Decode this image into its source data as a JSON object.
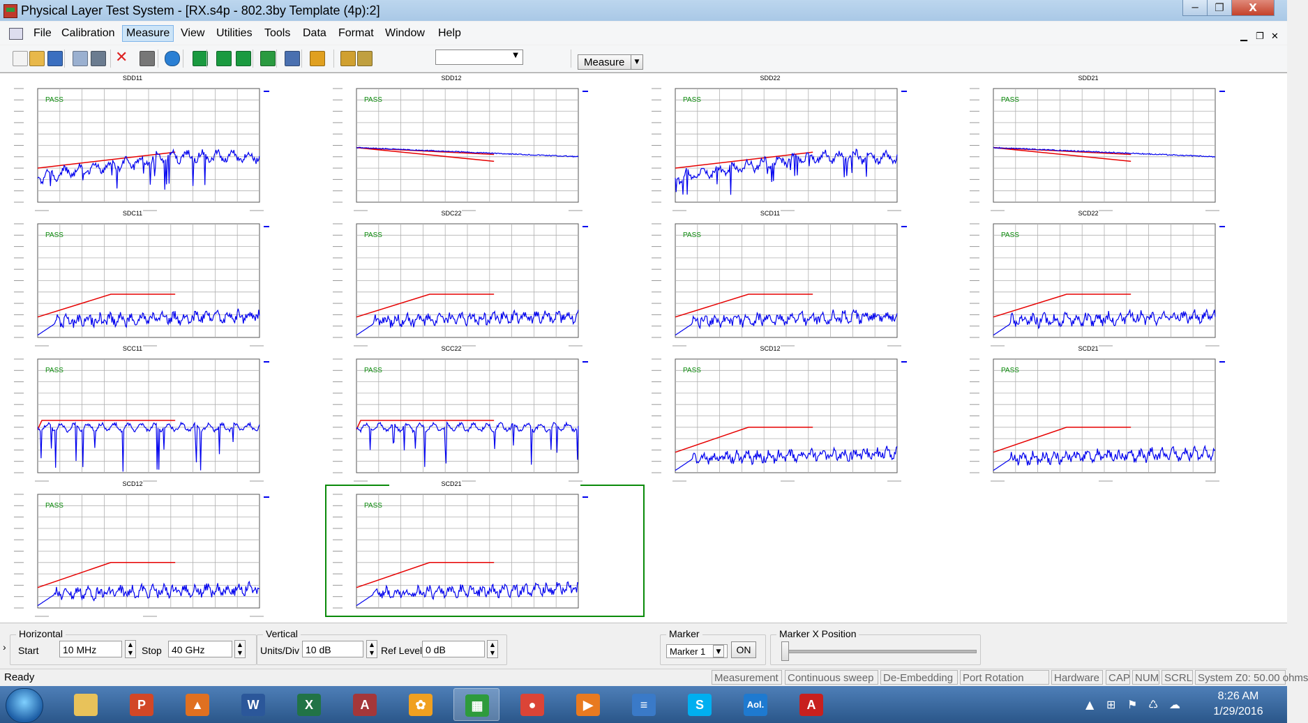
{
  "window": {
    "title": "Physical Layer Test System - [RX.s4p - 802.3by Template (4p):2]",
    "minimize": "─",
    "maximize": "❐",
    "close": "X"
  },
  "menu": {
    "items": [
      "File",
      "Calibration",
      "Measure",
      "View",
      "Utilities",
      "Tools",
      "Data",
      "Format",
      "Window",
      "Help"
    ],
    "active": "Measure",
    "mdi_min": "▁",
    "mdi_restore": "❐",
    "mdi_close": "✕"
  },
  "toolbar": {
    "icons": [
      "new-icon",
      "open-icon",
      "save-icon",
      "copy-icon",
      "camera-icon",
      "delete-icon",
      "print-icon",
      "help-icon",
      "back-icon",
      "forward-icon",
      "export-icon",
      "grid-icon",
      "layout-icon",
      "marker-icon",
      "tile-icon",
      "ruler-icon"
    ],
    "combo_value": "",
    "measure_label": "Measure",
    "measure_arrow": "▼"
  },
  "charts": [
    {
      "title": "SDD11",
      "pass": "PASS",
      "kind": "return"
    },
    {
      "title": "SDD12",
      "pass": "PASS",
      "kind": "insertion"
    },
    {
      "title": "SDD22",
      "pass": "PASS",
      "kind": "return"
    },
    {
      "title": "SDD21",
      "pass": "PASS",
      "kind": "insertion"
    },
    {
      "title": "SDC11",
      "pass": "PASS",
      "kind": "mode"
    },
    {
      "title": "SDC22",
      "pass": "PASS",
      "kind": "mode"
    },
    {
      "title": "SCD11",
      "pass": "PASS",
      "kind": "mode"
    },
    {
      "title": "SCD22",
      "pass": "PASS",
      "kind": "mode"
    },
    {
      "title": "SCC11",
      "pass": "PASS",
      "kind": "common"
    },
    {
      "title": "SCC22",
      "pass": "PASS",
      "kind": "common"
    },
    {
      "title": "SCD12",
      "pass": "PASS",
      "kind": "mode-low"
    },
    {
      "title": "SCD21",
      "pass": "PASS",
      "kind": "mode-low"
    },
    {
      "title": "SCD12",
      "pass": "PASS",
      "kind": "mode-low"
    },
    {
      "title": "SCD21",
      "pass": "PASS",
      "kind": "mode-low"
    }
  ],
  "selected_chart": 13,
  "colors": {
    "trace": "#0000ee",
    "limit": "#e60000",
    "pass": "#0a8a0a",
    "grid": "#b0b0b0",
    "selection": "#0a8a0a"
  },
  "horizontal": {
    "label": "Horizontal",
    "start_label": "Start",
    "start": "10 MHz",
    "stop_label": "Stop",
    "stop": "40 GHz"
  },
  "vertical": {
    "label": "Vertical",
    "units_label": "Units/Div",
    "units": "10 dB",
    "ref_label": "Ref Level",
    "ref": "0 dB"
  },
  "marker": {
    "label": "Marker",
    "select": "Marker 1",
    "on_button": "ON",
    "position_label": "Marker X Position",
    "position_fraction": 0
  },
  "panel_toggle": "›",
  "status": {
    "ready": "Ready",
    "cells": [
      "Measurement",
      "Continuous sweep",
      "De-Embedding",
      "Port Rotation",
      "Hardware",
      "CAP",
      "NUM",
      "SCRL",
      "System Z0: 50.00 ohms"
    ]
  },
  "taskbar": {
    "apps": [
      {
        "name": "explorer-icon",
        "glyph": "",
        "color": "#e8c25a"
      },
      {
        "name": "powerpoint-icon",
        "glyph": "P",
        "color": "#d24726"
      },
      {
        "name": "matlab-icon",
        "glyph": "▲",
        "color": "#e07020"
      },
      {
        "name": "word-icon",
        "glyph": "W",
        "color": "#2b579a"
      },
      {
        "name": "excel-icon",
        "glyph": "X",
        "color": "#217346"
      },
      {
        "name": "access-icon",
        "glyph": "A",
        "color": "#a4373a"
      },
      {
        "name": "flower-app-icon",
        "glyph": "✿",
        "color": "#f0a020"
      },
      {
        "name": "plts-app-icon",
        "glyph": "▦",
        "color": "#2e9b3c"
      },
      {
        "name": "chrome-icon",
        "glyph": "●",
        "color": "#db4437"
      },
      {
        "name": "media-player-icon",
        "glyph": "▶",
        "color": "#e87a20"
      },
      {
        "name": "scanner-icon",
        "glyph": "≡",
        "color": "#3a7ac8"
      },
      {
        "name": "skype-icon",
        "glyph": "S",
        "color": "#00aff0"
      },
      {
        "name": "aol-icon",
        "glyph": "Aol.",
        "color": "#1e7ad0"
      },
      {
        "name": "acrobat-icon",
        "glyph": "A",
        "color": "#c8201e"
      }
    ],
    "active_index": 7,
    "time": "8:26 AM",
    "date": "1/29/2016",
    "tray": [
      "▲",
      "⊞",
      "⚑",
      "♺",
      "☁"
    ]
  }
}
